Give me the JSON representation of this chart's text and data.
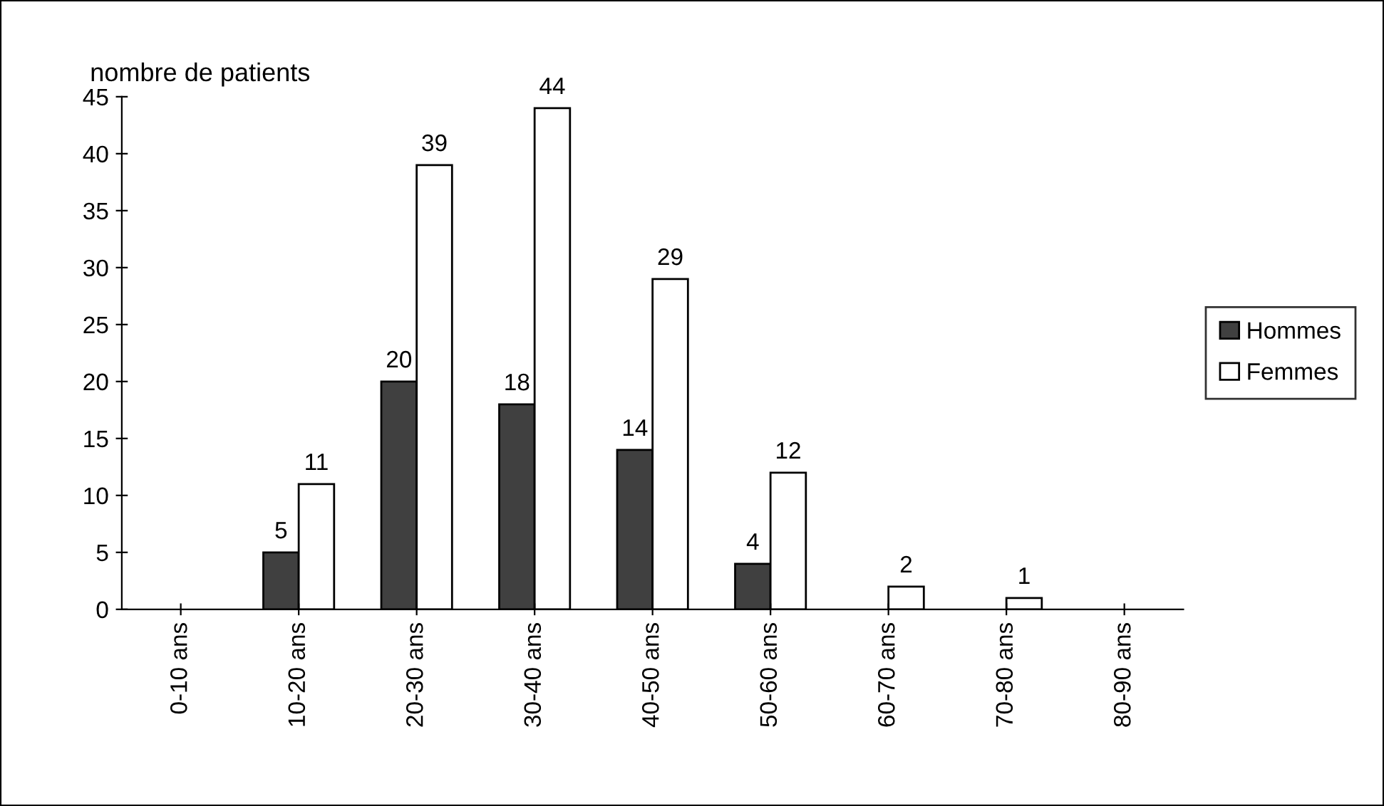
{
  "chart_data": {
    "type": "bar",
    "ylabel": "nombre de patients",
    "categories": [
      "0-10 ans",
      "10-20 ans",
      "20-30 ans",
      "30-40 ans",
      "40-50 ans",
      "50-60 ans",
      "60-70 ans",
      "70-80 ans",
      "80-90 ans"
    ],
    "series": [
      {
        "name": "Hommes",
        "color": "#404040",
        "values": [
          0,
          5,
          20,
          18,
          14,
          4,
          0,
          0,
          0
        ],
        "value_labels": [
          null,
          "5",
          "20",
          "18",
          "14",
          "4",
          null,
          null,
          null
        ]
      },
      {
        "name": "Femmes",
        "color": "#ffffff",
        "values": [
          0,
          11,
          39,
          44,
          29,
          12,
          2,
          1,
          0
        ],
        "value_labels": [
          null,
          "11",
          "39",
          "44",
          "29",
          "12",
          "2",
          "1",
          null
        ]
      }
    ],
    "ylim": [
      0,
      45
    ],
    "yticks": [
      0,
      5,
      10,
      15,
      20,
      25,
      30,
      35,
      40,
      45
    ],
    "grid": false,
    "legend": "right"
  }
}
